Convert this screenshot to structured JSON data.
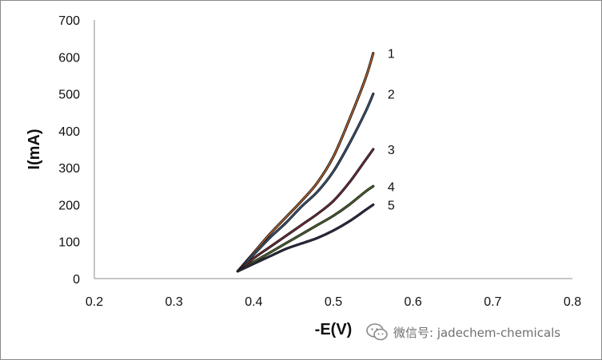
{
  "chart_data": {
    "type": "line",
    "title": "",
    "xlabel": "-E(V)",
    "ylabel": "I(mA)",
    "xlim": [
      0.2,
      0.8
    ],
    "ylim": [
      0,
      700
    ],
    "xticks": [
      0.2,
      0.3,
      0.4,
      0.5,
      0.6,
      0.7,
      0.8
    ],
    "yticks": [
      0,
      100,
      200,
      300,
      400,
      500,
      600,
      700
    ],
    "grid": false,
    "legend": "none (curves labeled 1–5 at right ends)",
    "series": [
      {
        "name": "1",
        "color": "#c0652a",
        "x": [
          0.38,
          0.4,
          0.42,
          0.44,
          0.46,
          0.48,
          0.5,
          0.52,
          0.54,
          0.55
        ],
        "y": [
          20,
          70,
          120,
          165,
          210,
          260,
          330,
          430,
          540,
          610
        ]
      },
      {
        "name": "2",
        "color": "#3a5a80",
        "x": [
          0.38,
          0.4,
          0.42,
          0.44,
          0.46,
          0.48,
          0.5,
          0.52,
          0.54,
          0.55
        ],
        "y": [
          20,
          65,
          110,
          150,
          195,
          235,
          290,
          365,
          450,
          500
        ]
      },
      {
        "name": "3",
        "color": "#7a2a3a",
        "x": [
          0.38,
          0.4,
          0.42,
          0.44,
          0.46,
          0.48,
          0.5,
          0.52,
          0.54,
          0.55
        ],
        "y": [
          20,
          55,
          85,
          115,
          145,
          175,
          210,
          260,
          320,
          350
        ]
      },
      {
        "name": "4",
        "color": "#4f6b2a",
        "x": [
          0.38,
          0.4,
          0.42,
          0.44,
          0.46,
          0.48,
          0.5,
          0.52,
          0.54,
          0.55
        ],
        "y": [
          20,
          45,
          70,
          95,
          120,
          145,
          170,
          200,
          235,
          250
        ]
      },
      {
        "name": "5",
        "color": "#2e2a4a",
        "x": [
          0.38,
          0.4,
          0.42,
          0.44,
          0.46,
          0.48,
          0.5,
          0.52,
          0.54,
          0.55
        ],
        "y": [
          20,
          40,
          60,
          80,
          95,
          110,
          130,
          155,
          185,
          200
        ]
      }
    ]
  },
  "watermark": {
    "text": "微信号: jadechem-chemicals",
    "icon": "wechat-icon"
  }
}
